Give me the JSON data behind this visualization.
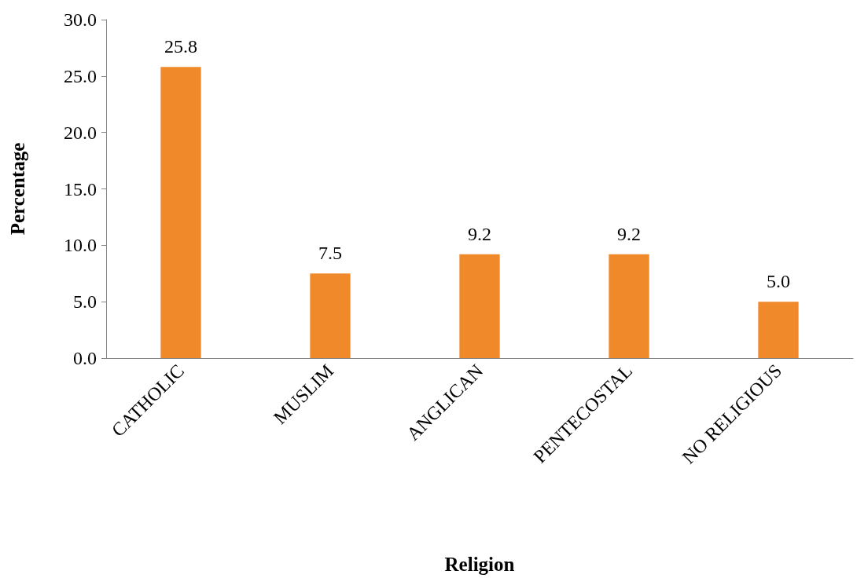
{
  "chart_data": {
    "type": "bar",
    "xlabel": "Religion",
    "ylabel": "Percentage",
    "categories": [
      "CATHOLIC",
      "MUSLIM",
      "ANGLICAN",
      "PENTECOSTAL",
      "NO RELIGIOUS"
    ],
    "values": [
      25.8,
      7.5,
      9.2,
      9.2,
      5.0
    ],
    "value_labels": [
      "25.8",
      "7.5",
      "9.2",
      "9.2",
      "5.0"
    ],
    "color": "#f0892a",
    "ylim": [
      0,
      30
    ],
    "yticks": [
      {
        "value": 0,
        "label": "0.0"
      },
      {
        "value": 5,
        "label": "5.0"
      },
      {
        "value": 10,
        "label": "10.0"
      },
      {
        "value": 15,
        "label": "15.0"
      },
      {
        "value": 20,
        "label": "20.0"
      },
      {
        "value": 25,
        "label": "25.0"
      },
      {
        "value": 30,
        "label": "30.0"
      }
    ],
    "grid": false
  }
}
